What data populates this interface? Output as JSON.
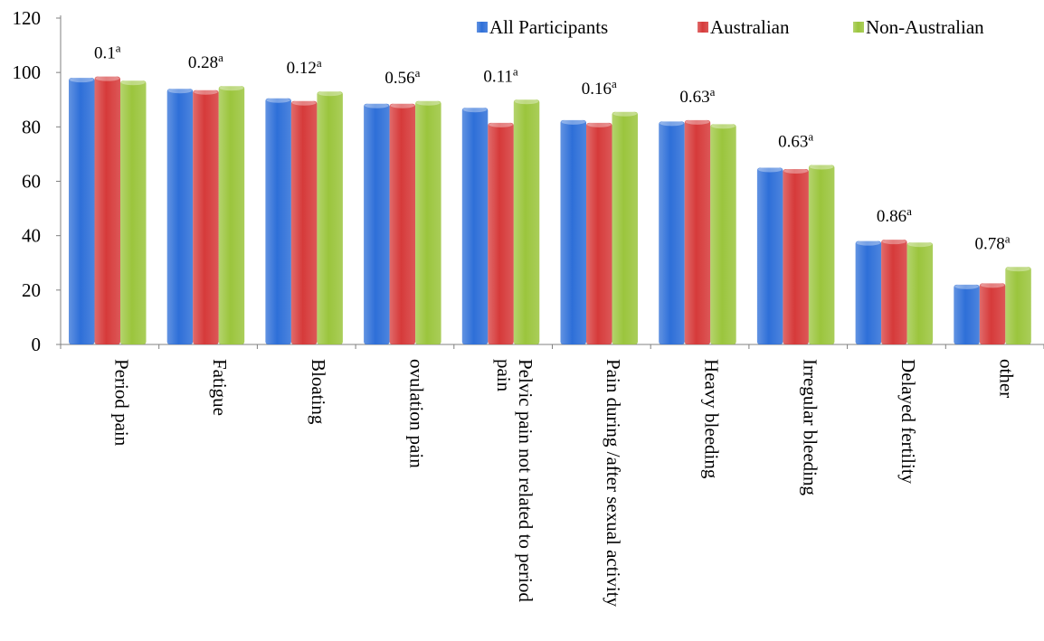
{
  "chart_data": {
    "type": "bar",
    "title": "",
    "xlabel": "",
    "ylabel": "",
    "ylim": [
      0,
      120
    ],
    "yticks": [
      0,
      20,
      40,
      60,
      80,
      100,
      120
    ],
    "grid": false,
    "legend_position": "top-right",
    "categories": [
      "Period pain",
      "Fatigue",
      "Bloating",
      "ovulation pain",
      "Pelvic pain not  related to period pain",
      "Pain during /after sexual activity",
      "Heavy bleeding",
      "Irregular bleeding",
      "Delayed fertility",
      "other"
    ],
    "category_lines": [
      [
        "Period pain"
      ],
      [
        "Fatigue"
      ],
      [
        "Bloating"
      ],
      [
        "ovulation pain"
      ],
      [
        "Pelvic pain not  related to period",
        "pain"
      ],
      [
        "Pain during /after sexual activity"
      ],
      [
        "Heavy bleeding"
      ],
      [
        "Irregular bleeding"
      ],
      [
        "Delayed fertility"
      ],
      [
        "other"
      ]
    ],
    "series": [
      {
        "name": "All Participants",
        "color": "#2E6FD8",
        "values": [
          98,
          94,
          90.5,
          88.5,
          87,
          82.5,
          82,
          65,
          38,
          22
        ]
      },
      {
        "name": "Australian",
        "color": "#D63A3A",
        "values": [
          98.5,
          93.5,
          89.5,
          88.5,
          81.5,
          81.5,
          82.5,
          64.5,
          38.5,
          22.5
        ]
      },
      {
        "name": "Non-Australian",
        "color": "#9BC53D",
        "values": [
          97,
          95,
          93,
          89.5,
          90,
          85.5,
          81,
          66,
          37.5,
          28.5
        ]
      }
    ],
    "annotations": [
      {
        "value": "0.1",
        "sup": "a"
      },
      {
        "value": "0.28",
        "sup": "a"
      },
      {
        "value": "0.12",
        "sup": "a"
      },
      {
        "value": "0.56",
        "sup": "a"
      },
      {
        "value": "0.11",
        "sup": "a"
      },
      {
        "value": "0.16",
        "sup": "a"
      },
      {
        "value": "0.63",
        "sup": "a"
      },
      {
        "value": "0.63",
        "sup": "a"
      },
      {
        "value": "0.86",
        "sup": "a"
      },
      {
        "value": "0.78",
        "sup": "a"
      }
    ]
  }
}
